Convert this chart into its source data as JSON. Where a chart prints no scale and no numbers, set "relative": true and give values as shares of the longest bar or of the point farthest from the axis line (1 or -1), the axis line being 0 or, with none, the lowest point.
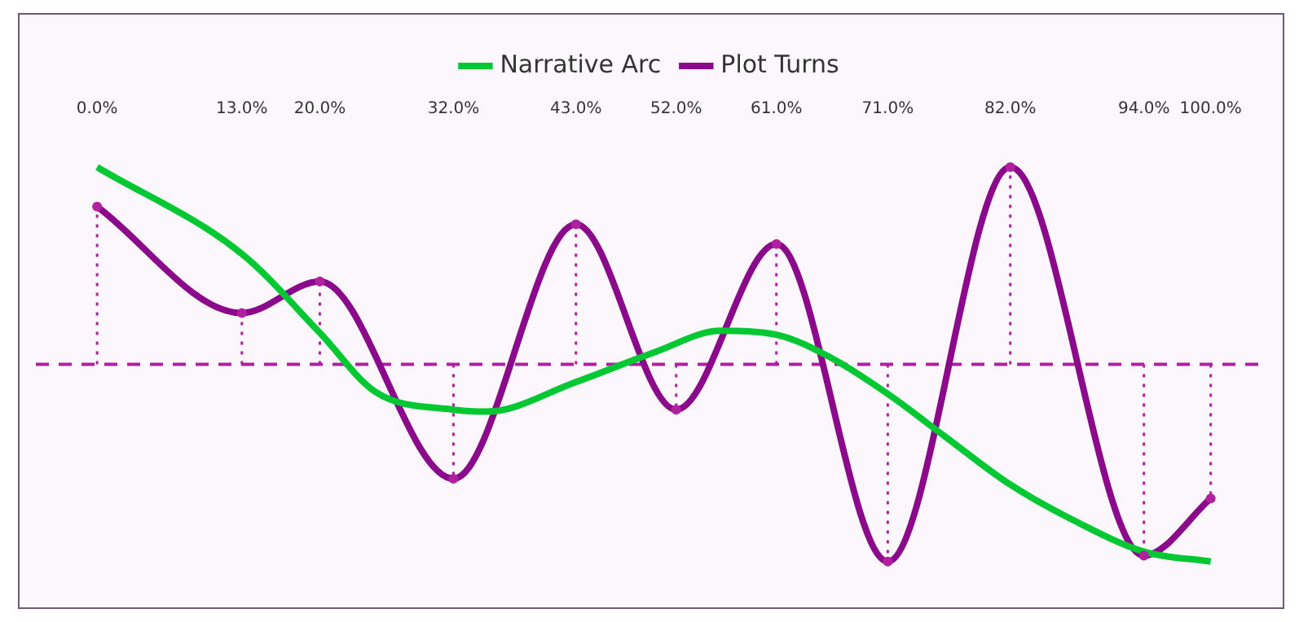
{
  "chart_data": {
    "type": "line",
    "relative": true,
    "legend": "top",
    "grid": false,
    "marker": "none",
    "xlim": [
      -5.5,
      105
    ],
    "xticks": [
      {
        "value": 0,
        "label": "0.0%"
      },
      {
        "value": 13,
        "label": "13.0%"
      },
      {
        "value": 20,
        "label": "20.0%"
      },
      {
        "value": 32,
        "label": "32.0%"
      },
      {
        "value": 43,
        "label": "43.0%"
      },
      {
        "value": 52,
        "label": "52.0%"
      },
      {
        "value": 61,
        "label": "61.0%"
      },
      {
        "value": 71,
        "label": "71.0%"
      },
      {
        "value": 82,
        "label": "82.0%"
      },
      {
        "value": 94,
        "label": "94.0%"
      },
      {
        "value": 100,
        "label": "100.0%"
      }
    ],
    "series": [
      {
        "name": "Narrative Arc",
        "color": "#00c832",
        "x": [
          0,
          13,
          20,
          25,
          32,
          35,
          43,
          50,
          56,
          61,
          66,
          71,
          76,
          82,
          88,
          94,
          100
        ],
        "values": [
          1.0,
          0.56,
          0.16,
          -0.14,
          -0.23,
          -0.24,
          -0.09,
          0.06,
          0.17,
          0.15,
          0.03,
          -0.15,
          -0.36,
          -0.61,
          -0.8,
          -0.95,
          -1.0
        ]
      },
      {
        "name": "Plot Turns",
        "color": "#8b0a8b",
        "x": [
          0,
          13,
          20,
          32,
          43,
          52,
          61,
          71,
          82,
          94,
          100
        ],
        "values": [
          0.8,
          0.26,
          0.42,
          -0.58,
          0.71,
          -0.23,
          0.61,
          -1.0,
          1.0,
          -0.97,
          -0.68
        ]
      },
      {
        "type": "lollipop",
        "line_style": "dotted",
        "marker": "circle",
        "color": "#b0209f",
        "x": [
          0,
          13,
          20,
          32,
          43,
          52,
          61,
          71,
          82,
          94,
          100
        ],
        "values": [
          0.8,
          0.26,
          0.42,
          -0.58,
          0.71,
          -0.23,
          0.61,
          -1.0,
          1.0,
          -0.97,
          -0.68
        ]
      }
    ],
    "ref_lines": [
      {
        "axis": "y",
        "value": 0,
        "color": "#b0209f",
        "line_style": "dashed"
      }
    ]
  }
}
